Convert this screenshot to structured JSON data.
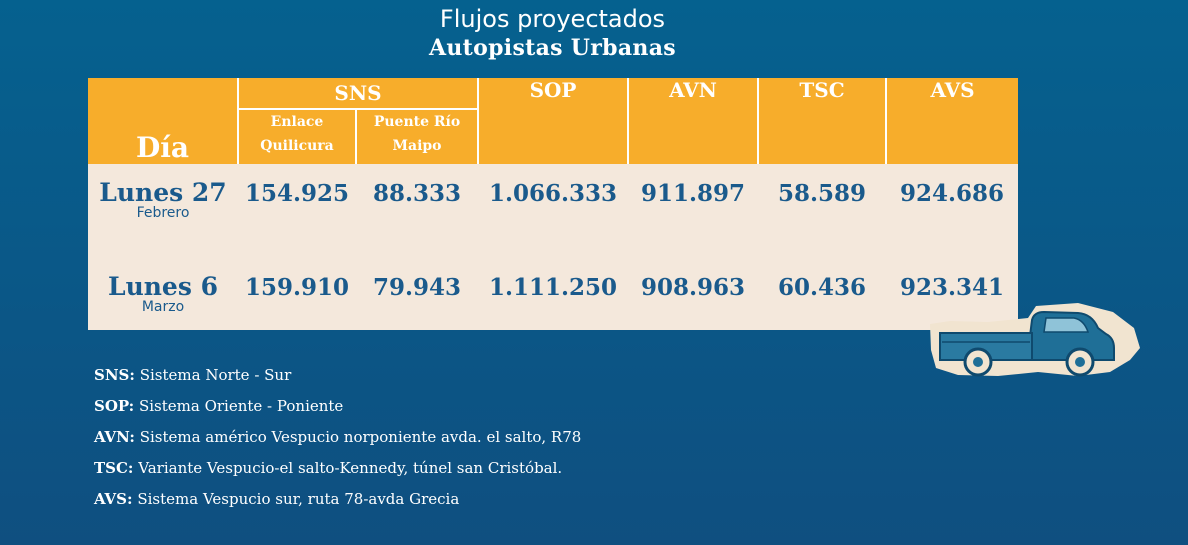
{
  "title": {
    "line1": "Flujos proyectados",
    "line2": "Autopistas Urbanas"
  },
  "table": {
    "day_header": "Día",
    "sns_header": "SNS",
    "sns_sub": [
      {
        "line1": "Enlace",
        "line2": "Quilicura"
      },
      {
        "line1": "Puente Río",
        "line2": "Maipo"
      }
    ],
    "other_headers": [
      "SOP",
      "AVN",
      "TSC",
      "AVS"
    ],
    "rows": [
      {
        "day": "Lunes 27",
        "month": "Febrero",
        "values": [
          "154.925",
          "88.333",
          "1.066.333",
          "911.897",
          "58.589",
          "924.686"
        ]
      },
      {
        "day": "Lunes 6",
        "month": "Marzo",
        "values": [
          "159.910",
          "79.943",
          "1.111.250",
          "908.963",
          "60.436",
          "923.341"
        ]
      }
    ]
  },
  "legend": [
    {
      "key": "SNS:",
      "text": "Sistema Norte - Sur"
    },
    {
      "key": "SOP:",
      "text": "Sistema Oriente - Poniente"
    },
    {
      "key": "AVN:",
      "text": "Sistema américo Vespucio norponiente avda. el salto, R78"
    },
    {
      "key": "TSC:",
      "text": "Variante Vespucio-el salto-Kennedy, túnel san Cristóbal."
    },
    {
      "key": "AVS:",
      "text": "Sistema Vespucio sur, ruta 78-avda Grecia"
    }
  ],
  "colors": {
    "background": "#05618f",
    "header": "#f7ad2b",
    "body_cell": "#f4e8dc",
    "value_text": "#1a5a8c"
  },
  "icons": {
    "truck": "pickup-truck-icon"
  }
}
